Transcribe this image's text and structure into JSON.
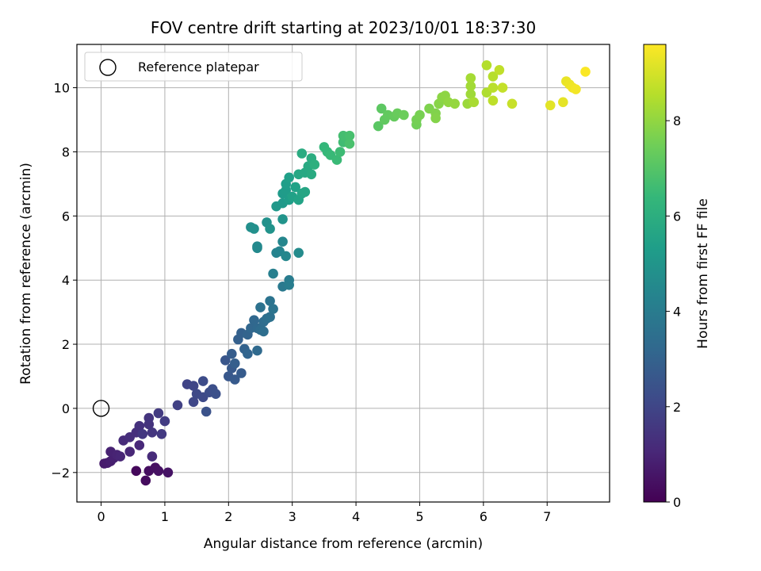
{
  "chart_data": {
    "type": "scatter",
    "title": "FOV centre drift starting at 2023/10/01 18:37:30",
    "xlabel": "Angular distance from reference (arcmin)",
    "ylabel": "Rotation from reference (arcmin)",
    "xlim": [
      -0.38,
      7.98
    ],
    "ylim": [
      -2.92,
      11.35
    ],
    "xticks": [
      0,
      1,
      2,
      3,
      4,
      5,
      6,
      7
    ],
    "yticks": [
      -2,
      0,
      2,
      4,
      6,
      8,
      10
    ],
    "grid": true,
    "legend": {
      "position": "top-left",
      "entries": [
        "Reference platepar"
      ]
    },
    "reference_point": {
      "x": 0,
      "y": 0,
      "label": "Reference platepar"
    },
    "colorbar": {
      "label": "Hours from first FF file",
      "range": [
        0,
        9.6
      ],
      "ticks": [
        0,
        2,
        4,
        6,
        8
      ],
      "colormap": "viridis"
    },
    "colormap_stops": [
      "#440154",
      "#482878",
      "#3e4a89",
      "#31688e",
      "#26828e",
      "#1f9e89",
      "#35b779",
      "#6ece58",
      "#b5de2b",
      "#fde725"
    ],
    "series": [
      {
        "points": [
          [
            0.55,
            -1.95,
            0.2
          ],
          [
            0.7,
            -2.25,
            0.3
          ],
          [
            0.75,
            -1.95,
            0.35
          ],
          [
            0.85,
            -1.85,
            0.4
          ],
          [
            0.9,
            -1.95,
            0.45
          ],
          [
            1.05,
            -2.0,
            0.5
          ],
          [
            0.05,
            -1.72,
            0.7
          ],
          [
            0.1,
            -1.7,
            0.75
          ],
          [
            0.15,
            -1.65,
            0.8
          ],
          [
            0.2,
            -1.55,
            0.85
          ],
          [
            0.15,
            -1.35,
            0.9
          ],
          [
            0.25,
            -1.45,
            0.95
          ],
          [
            0.3,
            -1.5,
            1.0
          ],
          [
            0.45,
            -1.35,
            1.05
          ],
          [
            0.6,
            -1.15,
            1.1
          ],
          [
            0.8,
            -1.5,
            1.15
          ],
          [
            0.35,
            -1.0,
            1.2
          ],
          [
            0.45,
            -0.9,
            1.25
          ],
          [
            0.55,
            -0.75,
            1.3
          ],
          [
            0.6,
            -0.55,
            1.35
          ],
          [
            0.75,
            -0.5,
            1.4
          ],
          [
            0.75,
            -0.3,
            1.45
          ],
          [
            0.8,
            -0.75,
            1.5
          ],
          [
            0.65,
            -0.8,
            1.55
          ],
          [
            0.95,
            -0.8,
            1.6
          ],
          [
            0.9,
            -0.15,
            1.65
          ],
          [
            1.0,
            -0.4,
            1.7
          ],
          [
            1.2,
            0.1,
            1.85
          ],
          [
            1.35,
            0.75,
            1.95
          ],
          [
            1.45,
            0.7,
            2.0
          ],
          [
            1.45,
            0.2,
            2.05
          ],
          [
            1.5,
            0.45,
            2.1
          ],
          [
            1.6,
            0.35,
            2.15
          ],
          [
            1.6,
            0.85,
            2.2
          ],
          [
            1.7,
            0.5,
            2.25
          ],
          [
            1.75,
            0.6,
            2.3
          ],
          [
            1.8,
            0.45,
            2.35
          ],
          [
            1.65,
            -0.1,
            2.4
          ],
          [
            1.95,
            1.5,
            2.55
          ],
          [
            2.0,
            1.0,
            2.6
          ],
          [
            2.05,
            1.25,
            2.65
          ],
          [
            2.1,
            0.9,
            2.7
          ],
          [
            2.2,
            1.1,
            2.75
          ],
          [
            2.05,
            1.7,
            2.8
          ],
          [
            2.1,
            1.4,
            2.85
          ],
          [
            2.15,
            2.15,
            2.9
          ],
          [
            2.2,
            2.35,
            2.95
          ],
          [
            2.25,
            1.85,
            3.0
          ],
          [
            2.3,
            2.3,
            3.05
          ],
          [
            2.3,
            1.7,
            3.1
          ],
          [
            2.35,
            2.5,
            3.15
          ],
          [
            2.4,
            2.75,
            3.2
          ],
          [
            2.45,
            2.5,
            3.25
          ],
          [
            2.45,
            1.8,
            3.3
          ],
          [
            2.5,
            2.45,
            3.35
          ],
          [
            2.55,
            2.7,
            3.4
          ],
          [
            2.55,
            2.4,
            3.45
          ],
          [
            2.6,
            2.8,
            3.5
          ],
          [
            2.65,
            2.85,
            3.55
          ],
          [
            2.5,
            3.15,
            3.6
          ],
          [
            2.65,
            3.35,
            3.65
          ],
          [
            2.7,
            3.1,
            3.7
          ],
          [
            2.85,
            3.8,
            3.9
          ],
          [
            2.95,
            4.0,
            4.0
          ],
          [
            2.95,
            3.85,
            4.05
          ],
          [
            2.7,
            4.2,
            4.15
          ],
          [
            2.75,
            4.85,
            4.3
          ],
          [
            2.8,
            4.9,
            4.35
          ],
          [
            2.85,
            5.2,
            4.4
          ],
          [
            2.9,
            4.75,
            4.45
          ],
          [
            2.45,
            5.05,
            4.5
          ],
          [
            2.45,
            5.0,
            4.55
          ],
          [
            3.1,
            4.85,
            4.6
          ],
          [
            2.35,
            5.65,
            4.75
          ],
          [
            2.4,
            5.6,
            4.8
          ],
          [
            2.6,
            5.8,
            4.85
          ],
          [
            2.65,
            5.6,
            4.9
          ],
          [
            2.85,
            5.9,
            4.95
          ],
          [
            2.75,
            6.3,
            5.1
          ],
          [
            2.85,
            6.4,
            5.15
          ],
          [
            2.85,
            6.7,
            5.2
          ],
          [
            2.9,
            6.8,
            5.25
          ],
          [
            2.95,
            6.5,
            5.3
          ],
          [
            2.9,
            7.0,
            5.35
          ],
          [
            2.95,
            7.2,
            5.4
          ],
          [
            3.0,
            6.6,
            5.45
          ],
          [
            3.05,
            6.9,
            5.5
          ],
          [
            3.1,
            6.5,
            5.55
          ],
          [
            3.15,
            6.7,
            5.6
          ],
          [
            3.2,
            6.75,
            5.65
          ],
          [
            3.1,
            7.3,
            5.7
          ],
          [
            3.2,
            7.35,
            5.75
          ],
          [
            3.25,
            7.55,
            5.8
          ],
          [
            3.3,
            7.3,
            5.85
          ],
          [
            3.15,
            7.95,
            5.9
          ],
          [
            3.3,
            7.8,
            5.95
          ],
          [
            3.35,
            7.6,
            6.05
          ],
          [
            3.5,
            8.15,
            6.35
          ],
          [
            3.55,
            8.0,
            6.4
          ],
          [
            3.6,
            7.9,
            6.45
          ],
          [
            3.7,
            7.75,
            6.5
          ],
          [
            3.75,
            8.0,
            6.55
          ],
          [
            3.8,
            8.3,
            6.6
          ],
          [
            3.85,
            8.45,
            6.65
          ],
          [
            3.8,
            8.5,
            6.7
          ],
          [
            3.9,
            8.5,
            6.75
          ],
          [
            3.9,
            8.25,
            6.8
          ],
          [
            4.35,
            8.8,
            7.1
          ],
          [
            4.4,
            9.35,
            7.15
          ],
          [
            4.45,
            9.0,
            7.2
          ],
          [
            4.5,
            9.15,
            7.25
          ],
          [
            4.6,
            9.1,
            7.3
          ],
          [
            4.65,
            9.2,
            7.35
          ],
          [
            4.75,
            9.15,
            7.4
          ],
          [
            4.95,
            8.85,
            7.5
          ],
          [
            4.95,
            9.0,
            7.55
          ],
          [
            5.0,
            9.15,
            7.6
          ],
          [
            5.15,
            9.35,
            7.7
          ],
          [
            5.25,
            9.2,
            7.75
          ],
          [
            5.25,
            9.05,
            7.8
          ],
          [
            5.3,
            9.5,
            7.85
          ],
          [
            5.35,
            9.7,
            7.9
          ],
          [
            5.4,
            9.75,
            7.95
          ],
          [
            5.45,
            9.55,
            8.0
          ],
          [
            5.55,
            9.5,
            8.05
          ],
          [
            5.75,
            9.5,
            8.15
          ],
          [
            5.8,
            9.8,
            8.2
          ],
          [
            5.8,
            10.05,
            8.25
          ],
          [
            5.8,
            10.3,
            8.3
          ],
          [
            5.85,
            9.55,
            8.35
          ],
          [
            6.05,
            9.85,
            8.45
          ],
          [
            6.05,
            10.7,
            8.5
          ],
          [
            6.15,
            10.35,
            8.55
          ],
          [
            6.15,
            10.0,
            8.6
          ],
          [
            6.15,
            9.6,
            8.65
          ],
          [
            6.25,
            10.55,
            8.7
          ],
          [
            6.3,
            10.0,
            8.75
          ],
          [
            6.45,
            9.5,
            8.8
          ],
          [
            7.05,
            9.45,
            9.2
          ],
          [
            7.25,
            9.55,
            9.25
          ],
          [
            7.3,
            10.2,
            9.3
          ],
          [
            7.35,
            10.1,
            9.35
          ],
          [
            7.4,
            10.0,
            9.4
          ],
          [
            7.45,
            9.95,
            9.45
          ],
          [
            7.6,
            10.5,
            9.55
          ]
        ]
      }
    ]
  }
}
